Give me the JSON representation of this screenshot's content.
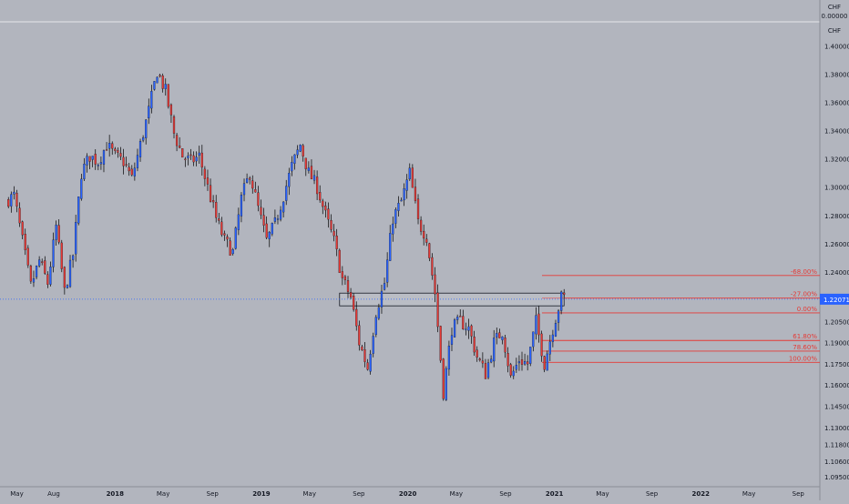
{
  "header": {
    "currency_top": "CHF",
    "value_top": "0.00000",
    "currency_scale": "CHF"
  },
  "chart_data": {
    "type": "candlestick",
    "title": "",
    "xlabel": "",
    "ylabel": "",
    "ylim": [
      1.088,
      1.417
    ],
    "y_ticks": [
      1.4,
      1.38,
      1.36,
      1.34,
      1.32,
      1.3,
      1.28,
      1.26,
      1.24,
      1.22071,
      1.205,
      1.19,
      1.175,
      1.16,
      1.145,
      1.13,
      1.118,
      1.106,
      1.095
    ],
    "y_tick_labels": [
      "1.40000",
      "1.38000",
      "1.36000",
      "1.34000",
      "1.32000",
      "1.30000",
      "1.28000",
      "1.26000",
      "1.24000",
      "1.22071",
      "1.20500",
      "1.19000",
      "1.17500",
      "1.16000",
      "1.14500",
      "1.13000",
      "1.11800",
      "1.10600",
      "1.09500"
    ],
    "x_ticks": [
      {
        "label": "May",
        "date": "2017-05"
      },
      {
        "label": "Aug",
        "date": "2017-08"
      },
      {
        "label": "2018",
        "date": "2018-01"
      },
      {
        "label": "May",
        "date": "2018-05"
      },
      {
        "label": "Sep",
        "date": "2018-09"
      },
      {
        "label": "2019",
        "date": "2019-01"
      },
      {
        "label": "May",
        "date": "2019-05"
      },
      {
        "label": "Sep",
        "date": "2019-09"
      },
      {
        "label": "2020",
        "date": "2020-01"
      },
      {
        "label": "May",
        "date": "2020-05"
      },
      {
        "label": "Sep",
        "date": "2020-09"
      },
      {
        "label": "2021",
        "date": "2021-01"
      },
      {
        "label": "May",
        "date": "2021-05"
      },
      {
        "label": "Sep",
        "date": "2021-09"
      },
      {
        "label": "2022",
        "date": "2022-01"
      },
      {
        "label": "May",
        "date": "2022-05"
      },
      {
        "label": "Sep",
        "date": "2022-09"
      }
    ],
    "current_price": 1.22071,
    "current_price_label": "1.22071",
    "resistance_zone": {
      "from_date": "2019-07",
      "to_date": "2021-01",
      "low": 1.216,
      "high": 1.225
    },
    "fibonacci": [
      {
        "label": "-68.00%",
        "price": 1.2375,
        "color": "#e53935"
      },
      {
        "label": "-27.00%",
        "price": 1.2215,
        "color": "#e53935"
      },
      {
        "label": "0.00%",
        "price": 1.211,
        "color": "#e53935"
      },
      {
        "label": "61.80%",
        "price": 1.1915,
        "color": "#e53935"
      },
      {
        "label": "78.60%",
        "price": 1.184,
        "color": "#e53935"
      },
      {
        "label": "100.00%",
        "price": 1.176,
        "color": "#e53935"
      }
    ],
    "fib_start_date": "2020-12",
    "fib_end_date": "2022-10",
    "bull_color": "#2962ff",
    "bear_color": "#e53935",
    "wick_color": "#000000",
    "keypoints": [
      [
        "2017-04-10",
        1.29
      ],
      [
        "2017-05-01",
        1.294
      ],
      [
        "2017-05-22",
        1.262
      ],
      [
        "2017-06-12",
        1.23
      ],
      [
        "2017-07-03",
        1.248
      ],
      [
        "2017-07-24",
        1.232
      ],
      [
        "2017-08-14",
        1.272
      ],
      [
        "2017-09-04",
        1.226
      ],
      [
        "2017-09-25",
        1.252
      ],
      [
        "2017-10-16",
        1.31
      ],
      [
        "2017-11-06",
        1.322
      ],
      [
        "2017-11-27",
        1.318
      ],
      [
        "2017-12-18",
        1.33
      ],
      [
        "2018-01-08",
        1.322
      ],
      [
        "2018-01-29",
        1.318
      ],
      [
        "2018-02-19",
        1.306
      ],
      [
        "2018-03-12",
        1.33
      ],
      [
        "2018-04-02",
        1.354
      ],
      [
        "2018-04-23",
        1.382
      ],
      [
        "2018-05-14",
        1.368
      ],
      [
        "2018-06-04",
        1.338
      ],
      [
        "2018-06-25",
        1.322
      ],
      [
        "2018-07-16",
        1.318
      ],
      [
        "2018-08-06",
        1.322
      ],
      [
        "2018-08-27",
        1.3
      ],
      [
        "2018-09-17",
        1.278
      ],
      [
        "2018-10-08",
        1.262
      ],
      [
        "2018-10-29",
        1.254
      ],
      [
        "2018-11-19",
        1.292
      ],
      [
        "2018-12-10",
        1.31
      ],
      [
        "2018-12-31",
        1.285
      ],
      [
        "2019-01-21",
        1.262
      ],
      [
        "2019-02-11",
        1.274
      ],
      [
        "2019-03-04",
        1.294
      ],
      [
        "2019-03-25",
        1.315
      ],
      [
        "2019-04-15",
        1.33
      ],
      [
        "2019-05-06",
        1.31
      ],
      [
        "2019-05-27",
        1.3
      ],
      [
        "2019-06-17",
        1.28
      ],
      [
        "2019-07-08",
        1.262
      ],
      [
        "2019-07-29",
        1.235
      ],
      [
        "2019-08-19",
        1.222
      ],
      [
        "2019-09-09",
        1.19
      ],
      [
        "2019-09-30",
        1.172
      ],
      [
        "2019-10-21",
        1.212
      ],
      [
        "2019-11-11",
        1.232
      ],
      [
        "2019-12-02",
        1.278
      ],
      [
        "2019-12-23",
        1.29
      ],
      [
        "2020-01-13",
        1.31
      ],
      [
        "2020-02-03",
        1.275
      ],
      [
        "2020-02-24",
        1.265
      ],
      [
        "2020-03-16",
        1.225
      ],
      [
        "2020-04-06",
        1.155
      ],
      [
        "2020-04-27",
        1.2
      ],
      [
        "2020-05-18",
        1.205
      ],
      [
        "2020-06-08",
        1.2
      ],
      [
        "2020-06-29",
        1.18
      ],
      [
        "2020-07-20",
        1.168
      ],
      [
        "2020-08-10",
        1.19
      ],
      [
        "2020-08-31",
        1.198
      ],
      [
        "2020-09-21",
        1.165
      ],
      [
        "2020-10-12",
        1.178
      ],
      [
        "2020-11-02",
        1.175
      ],
      [
        "2020-11-23",
        1.205
      ],
      [
        "2020-12-14",
        1.175
      ],
      [
        "2021-01-04",
        1.2
      ],
      [
        "2021-01-25",
        1.222
      ]
    ]
  }
}
